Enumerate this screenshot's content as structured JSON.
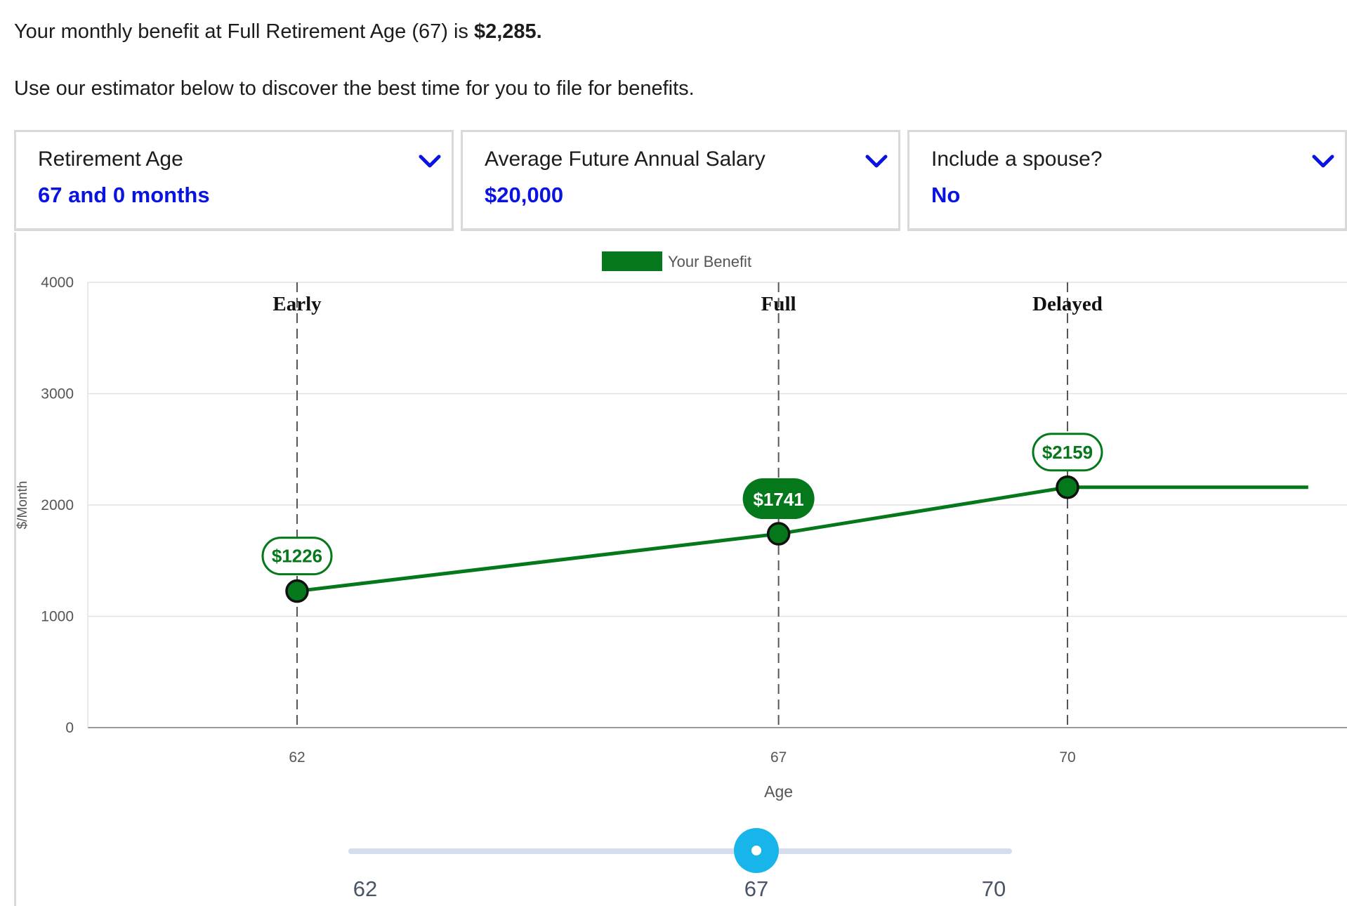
{
  "intro": {
    "line1_prefix": "Your monthly benefit at Full Retirement Age (67) is ",
    "line1_amount": "$2,285.",
    "line2": "Use our estimator below to discover the best time for you to file for benefits."
  },
  "filters": [
    {
      "label": "Retirement Age",
      "value": "67 and 0 months",
      "icon": "chevron-down-icon"
    },
    {
      "label": "Average Future Annual Salary",
      "value": "$20,000",
      "icon": "chevron-down-icon"
    },
    {
      "label": "Include a spouse?",
      "value": "No",
      "icon": "chevron-down-icon"
    }
  ],
  "colors": {
    "accent_blue": "#0a14e0",
    "benefit_green": "#04781a",
    "slider_thumb": "#17b5ea",
    "slider_track": "#d4dced"
  },
  "chart_data": {
    "type": "line",
    "legend": "Your Benefit",
    "legend_position": "top-center",
    "xlabel": "Age",
    "ylabel": "$/Month",
    "ylim": [
      0,
      4000
    ],
    "yticks": [
      0,
      1000,
      2000,
      3000,
      4000
    ],
    "xticks": [
      62,
      67,
      70
    ],
    "xlim": [
      57,
      72.1
    ],
    "grid": true,
    "series": [
      {
        "name": "Your Benefit",
        "points": [
          {
            "x": 62,
            "y": 1226
          },
          {
            "x": 67,
            "y": 1741
          },
          {
            "x": 70,
            "y": 2159
          },
          {
            "x": 72.5,
            "y": 2159
          }
        ]
      }
    ],
    "markers": [
      {
        "x": 62,
        "label": "Early",
        "value": 1226,
        "value_label": "$1226",
        "selected": false
      },
      {
        "x": 67,
        "label": "Full",
        "value": 1741,
        "value_label": "$1741",
        "selected": true
      },
      {
        "x": 70,
        "label": "Delayed",
        "value": 2159,
        "value_label": "$2159",
        "selected": false
      }
    ]
  },
  "slider": {
    "min": 62,
    "max": 70,
    "value": 67,
    "ticks": [
      "62",
      "67",
      "70"
    ]
  }
}
